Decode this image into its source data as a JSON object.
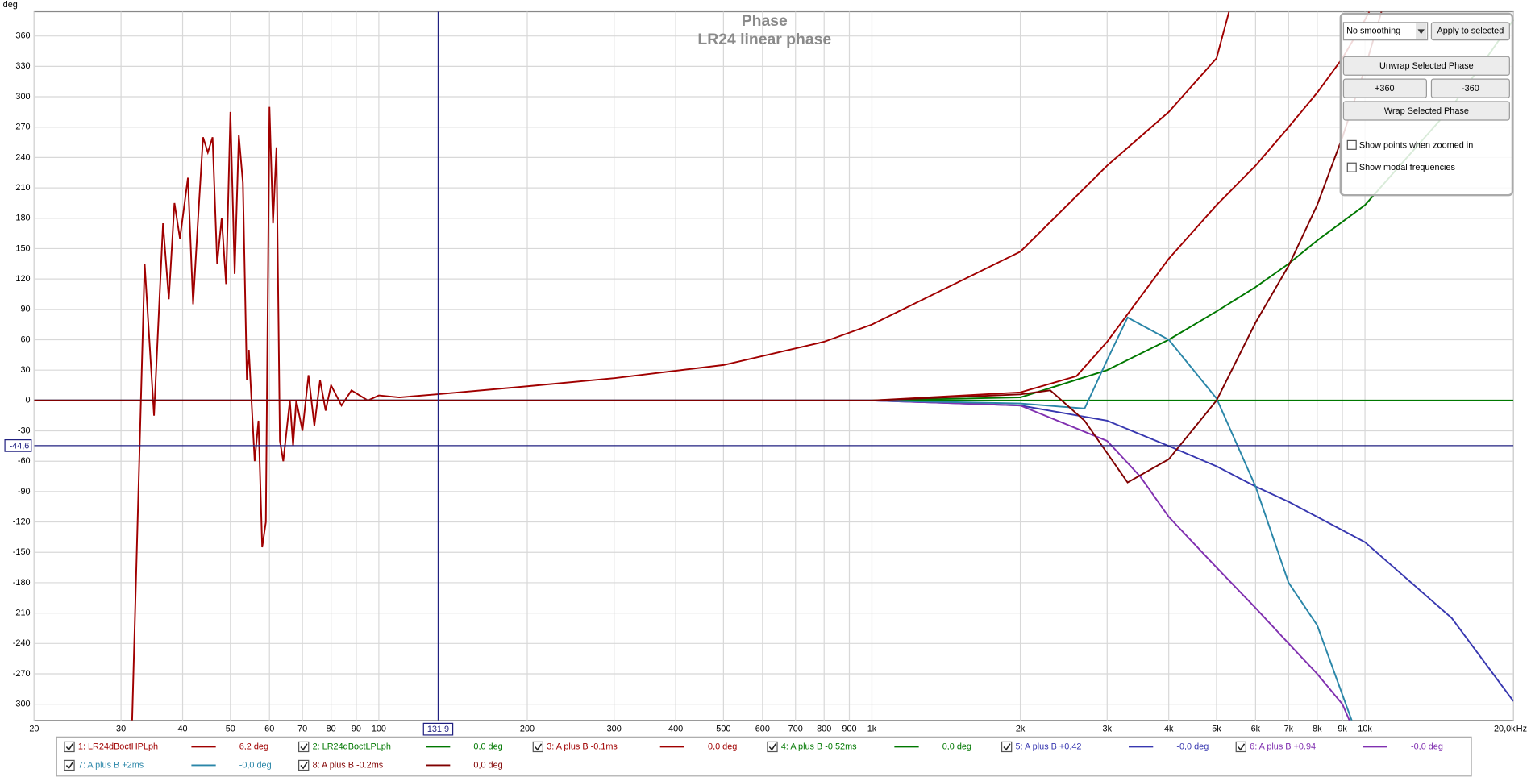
{
  "chart_data": {
    "type": "line",
    "title": "Phase",
    "subtitle": "LR24 linear phase",
    "y_unit": "deg",
    "x_unit": "Hz",
    "xscale": "log",
    "grid": true,
    "xlim": [
      20,
      20000
    ],
    "ylim": [
      -316,
      384
    ],
    "xticks": [
      20,
      30,
      40,
      50,
      60,
      70,
      80,
      90,
      100,
      200,
      300,
      400,
      500,
      600,
      700,
      800,
      900,
      {
        "value": 1000,
        "label": "1k"
      },
      {
        "value": 2000,
        "label": "2k"
      },
      {
        "value": 3000,
        "label": "3k"
      },
      {
        "value": 4000,
        "label": "4k"
      },
      {
        "value": 5000,
        "label": "5k"
      },
      {
        "value": 6000,
        "label": "6k"
      },
      {
        "value": 7000,
        "label": "7k"
      },
      {
        "value": 8000,
        "label": "8k"
      },
      {
        "value": 9000,
        "label": "9k"
      },
      {
        "value": 10000,
        "label": "10k"
      },
      {
        "value": 20000,
        "label": "20,0k"
      }
    ],
    "yticks": [
      -300,
      -270,
      -240,
      -210,
      -180,
      -150,
      -120,
      -90,
      -60,
      -30,
      0,
      30,
      60,
      90,
      120,
      150,
      180,
      210,
      240,
      270,
      300,
      330,
      360
    ],
    "cursor": {
      "x": {
        "value": 131.9,
        "label": "131,9"
      },
      "y": {
        "value": -44.6,
        "label": "-44,6"
      }
    },
    "series": [
      {
        "name": "1: LR24dBoctHPLph",
        "color": "#a00000",
        "readout": "6,2 deg",
        "x": [
          31.6,
          33.5,
          35,
          36.5,
          37.5,
          38.5,
          39.5,
          41,
          42,
          43,
          44,
          45,
          46,
          47,
          48,
          49,
          50,
          51,
          52,
          53,
          54,
          54.5,
          56,
          57,
          58,
          59,
          60,
          61,
          62,
          63,
          64,
          66,
          67,
          68,
          70,
          72,
          74,
          76,
          78,
          80,
          84,
          88,
          95,
          100,
          110,
          131.9,
          200,
          300,
          500,
          800,
          1000,
          2000,
          3000,
          4000,
          5000,
          5300
        ],
        "values": [
          -316,
          135,
          -15,
          175,
          100,
          195,
          160,
          220,
          95,
          180,
          260,
          245,
          260,
          135,
          180,
          115,
          285,
          125,
          262,
          215,
          20,
          50,
          -60,
          -20,
          -145,
          -120,
          290,
          175,
          250,
          -40,
          -60,
          0,
          -45,
          0,
          -30,
          25,
          -25,
          20,
          -10,
          15,
          -5,
          10,
          0,
          5,
          3,
          6.2,
          14,
          22,
          35,
          58,
          75,
          147,
          232,
          285,
          338,
          384
        ]
      },
      {
        "name": "2: LR24dBoctLPLph",
        "color": "#007800",
        "readout": "0,0 deg",
        "x": [
          20,
          20000
        ],
        "values": [
          0,
          0
        ]
      },
      {
        "name": "3: A plus B -0.1ms",
        "color": "#a00000",
        "readout": "0,0 deg",
        "x": [
          20,
          1000,
          2000,
          2600,
          3000,
          4000,
          5000,
          6000,
          7000,
          8000,
          9000,
          10000,
          10200
        ],
        "values": [
          0,
          0,
          8,
          24,
          58,
          140,
          193,
          232,
          270,
          304,
          338,
          376,
          384
        ]
      },
      {
        "name": "4: A plus B -0.52ms",
        "color": "#007800",
        "readout": "0,0 deg",
        "x": [
          20,
          1000,
          2000,
          3000,
          4000,
          5000,
          6000,
          7000,
          8000,
          10000,
          15000,
          20000
        ],
        "values": [
          0,
          0,
          3,
          30,
          60,
          88,
          112,
          135,
          158,
          193,
          290,
          376
        ]
      },
      {
        "name": "5: A plus B +0,42",
        "color": "#3838b0",
        "readout": "-0,0 deg",
        "x": [
          20,
          1000,
          2000,
          3000,
          4000,
          5000,
          6000,
          7000,
          8000,
          10000,
          15000,
          20000
        ],
        "values": [
          0,
          0,
          -5,
          -20,
          -45,
          -65,
          -85,
          -100,
          -115,
          -140,
          -215,
          -297
        ]
      },
      {
        "name": "6: A plus B +0.94",
        "color": "#8030b0",
        "readout": "-0,0 deg",
        "x": [
          20,
          1000,
          2000,
          3000,
          3500,
          4000,
          5000,
          6000,
          7000,
          8000,
          9000,
          9300
        ],
        "values": [
          0,
          0,
          -5,
          -40,
          -75,
          -115,
          -165,
          -205,
          -240,
          -270,
          -300,
          -316
        ]
      },
      {
        "name": "7: A plus B +2ms",
        "color": "#2a86a8",
        "readout": "-0,0 deg",
        "x": [
          20,
          1000,
          2000,
          2700,
          3000,
          3300,
          4000,
          5000,
          6000,
          7000,
          8000,
          9400
        ],
        "values": [
          0,
          0,
          -3,
          -8,
          40,
          82,
          60,
          2,
          -85,
          -180,
          -222,
          -316
        ]
      },
      {
        "name": "8: A plus B -0.2ms",
        "color": "#800000",
        "readout": "0,0 deg",
        "x": [
          20,
          1000,
          2000,
          2300,
          2700,
          3300,
          4000,
          5000,
          6000,
          7000,
          8000,
          9000,
          10000,
          10800
        ],
        "values": [
          0,
          0,
          6,
          10,
          -20,
          -81,
          -58,
          0,
          77,
          133,
          193,
          260,
          328,
          384
        ]
      }
    ]
  },
  "controls": {
    "smoothing": "No smoothing",
    "apply": "Apply to selected",
    "unwrap": "Unwrap Selected Phase",
    "plus360": "+360",
    "minus360": "-360",
    "wrap": "Wrap Selected Phase",
    "show_points": "Show points when zoomed in",
    "show_modal": "Show modal frequencies"
  }
}
